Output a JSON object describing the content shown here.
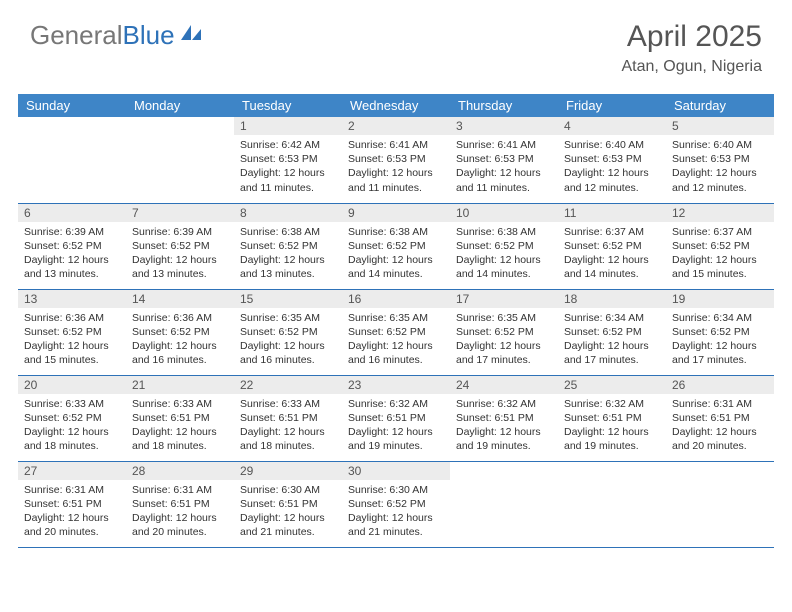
{
  "logo": {
    "gray": "General",
    "blue": "Blue"
  },
  "title": "April 2025",
  "location": "Atan, Ogun, Nigeria",
  "colors": {
    "header_bg": "#3e85c7",
    "header_text": "#ffffff",
    "daynum_bg": "#ececec",
    "border": "#2e72b8",
    "text": "#333333",
    "logo_gray": "#777777",
    "logo_blue": "#2e72b8"
  },
  "dayHeaders": [
    "Sunday",
    "Monday",
    "Tuesday",
    "Wednesday",
    "Thursday",
    "Friday",
    "Saturday"
  ],
  "weeks": [
    [
      {
        "n": "",
        "sr": "",
        "ss": "",
        "dl": ""
      },
      {
        "n": "",
        "sr": "",
        "ss": "",
        "dl": ""
      },
      {
        "n": "1",
        "sr": "Sunrise: 6:42 AM",
        "ss": "Sunset: 6:53 PM",
        "dl": "Daylight: 12 hours and 11 minutes."
      },
      {
        "n": "2",
        "sr": "Sunrise: 6:41 AM",
        "ss": "Sunset: 6:53 PM",
        "dl": "Daylight: 12 hours and 11 minutes."
      },
      {
        "n": "3",
        "sr": "Sunrise: 6:41 AM",
        "ss": "Sunset: 6:53 PM",
        "dl": "Daylight: 12 hours and 11 minutes."
      },
      {
        "n": "4",
        "sr": "Sunrise: 6:40 AM",
        "ss": "Sunset: 6:53 PM",
        "dl": "Daylight: 12 hours and 12 minutes."
      },
      {
        "n": "5",
        "sr": "Sunrise: 6:40 AM",
        "ss": "Sunset: 6:53 PM",
        "dl": "Daylight: 12 hours and 12 minutes."
      }
    ],
    [
      {
        "n": "6",
        "sr": "Sunrise: 6:39 AM",
        "ss": "Sunset: 6:52 PM",
        "dl": "Daylight: 12 hours and 13 minutes."
      },
      {
        "n": "7",
        "sr": "Sunrise: 6:39 AM",
        "ss": "Sunset: 6:52 PM",
        "dl": "Daylight: 12 hours and 13 minutes."
      },
      {
        "n": "8",
        "sr": "Sunrise: 6:38 AM",
        "ss": "Sunset: 6:52 PM",
        "dl": "Daylight: 12 hours and 13 minutes."
      },
      {
        "n": "9",
        "sr": "Sunrise: 6:38 AM",
        "ss": "Sunset: 6:52 PM",
        "dl": "Daylight: 12 hours and 14 minutes."
      },
      {
        "n": "10",
        "sr": "Sunrise: 6:38 AM",
        "ss": "Sunset: 6:52 PM",
        "dl": "Daylight: 12 hours and 14 minutes."
      },
      {
        "n": "11",
        "sr": "Sunrise: 6:37 AM",
        "ss": "Sunset: 6:52 PM",
        "dl": "Daylight: 12 hours and 14 minutes."
      },
      {
        "n": "12",
        "sr": "Sunrise: 6:37 AM",
        "ss": "Sunset: 6:52 PM",
        "dl": "Daylight: 12 hours and 15 minutes."
      }
    ],
    [
      {
        "n": "13",
        "sr": "Sunrise: 6:36 AM",
        "ss": "Sunset: 6:52 PM",
        "dl": "Daylight: 12 hours and 15 minutes."
      },
      {
        "n": "14",
        "sr": "Sunrise: 6:36 AM",
        "ss": "Sunset: 6:52 PM",
        "dl": "Daylight: 12 hours and 16 minutes."
      },
      {
        "n": "15",
        "sr": "Sunrise: 6:35 AM",
        "ss": "Sunset: 6:52 PM",
        "dl": "Daylight: 12 hours and 16 minutes."
      },
      {
        "n": "16",
        "sr": "Sunrise: 6:35 AM",
        "ss": "Sunset: 6:52 PM",
        "dl": "Daylight: 12 hours and 16 minutes."
      },
      {
        "n": "17",
        "sr": "Sunrise: 6:35 AM",
        "ss": "Sunset: 6:52 PM",
        "dl": "Daylight: 12 hours and 17 minutes."
      },
      {
        "n": "18",
        "sr": "Sunrise: 6:34 AM",
        "ss": "Sunset: 6:52 PM",
        "dl": "Daylight: 12 hours and 17 minutes."
      },
      {
        "n": "19",
        "sr": "Sunrise: 6:34 AM",
        "ss": "Sunset: 6:52 PM",
        "dl": "Daylight: 12 hours and 17 minutes."
      }
    ],
    [
      {
        "n": "20",
        "sr": "Sunrise: 6:33 AM",
        "ss": "Sunset: 6:52 PM",
        "dl": "Daylight: 12 hours and 18 minutes."
      },
      {
        "n": "21",
        "sr": "Sunrise: 6:33 AM",
        "ss": "Sunset: 6:51 PM",
        "dl": "Daylight: 12 hours and 18 minutes."
      },
      {
        "n": "22",
        "sr": "Sunrise: 6:33 AM",
        "ss": "Sunset: 6:51 PM",
        "dl": "Daylight: 12 hours and 18 minutes."
      },
      {
        "n": "23",
        "sr": "Sunrise: 6:32 AM",
        "ss": "Sunset: 6:51 PM",
        "dl": "Daylight: 12 hours and 19 minutes."
      },
      {
        "n": "24",
        "sr": "Sunrise: 6:32 AM",
        "ss": "Sunset: 6:51 PM",
        "dl": "Daylight: 12 hours and 19 minutes."
      },
      {
        "n": "25",
        "sr": "Sunrise: 6:32 AM",
        "ss": "Sunset: 6:51 PM",
        "dl": "Daylight: 12 hours and 19 minutes."
      },
      {
        "n": "26",
        "sr": "Sunrise: 6:31 AM",
        "ss": "Sunset: 6:51 PM",
        "dl": "Daylight: 12 hours and 20 minutes."
      }
    ],
    [
      {
        "n": "27",
        "sr": "Sunrise: 6:31 AM",
        "ss": "Sunset: 6:51 PM",
        "dl": "Daylight: 12 hours and 20 minutes."
      },
      {
        "n": "28",
        "sr": "Sunrise: 6:31 AM",
        "ss": "Sunset: 6:51 PM",
        "dl": "Daylight: 12 hours and 20 minutes."
      },
      {
        "n": "29",
        "sr": "Sunrise: 6:30 AM",
        "ss": "Sunset: 6:51 PM",
        "dl": "Daylight: 12 hours and 21 minutes."
      },
      {
        "n": "30",
        "sr": "Sunrise: 6:30 AM",
        "ss": "Sunset: 6:52 PM",
        "dl": "Daylight: 12 hours and 21 minutes."
      },
      {
        "n": "",
        "sr": "",
        "ss": "",
        "dl": ""
      },
      {
        "n": "",
        "sr": "",
        "ss": "",
        "dl": ""
      },
      {
        "n": "",
        "sr": "",
        "ss": "",
        "dl": ""
      }
    ]
  ]
}
